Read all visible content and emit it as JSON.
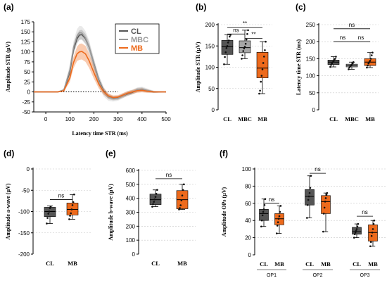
{
  "colors": {
    "CL": "#555555",
    "MBC": "#a6a6a6",
    "MB": "#ed6a1c",
    "MBC_line": "#9a9a9a"
  },
  "chart_data": [
    {
      "panel": "(a)",
      "type": "line",
      "xlabel": "Latency time STR (ms)",
      "ylabel": "Amplitude STR (µV)",
      "xlim": [
        -50,
        500
      ],
      "ylim": [
        -50,
        175
      ],
      "xticks": [
        0,
        100,
        200,
        300,
        400,
        500
      ],
      "yticks": [
        -50,
        -25,
        0,
        25,
        50,
        75,
        100,
        125,
        150,
        175
      ],
      "legend_placement": "top-right",
      "series": [
        {
          "name": "CL",
          "color_key": "CL",
          "x": [
            -50,
            0,
            50,
            75,
            100,
            115,
            130,
            140,
            150,
            165,
            180,
            200,
            220,
            240,
            260,
            280,
            300,
            320,
            340,
            360,
            380,
            400,
            420,
            450,
            500
          ],
          "y": [
            0,
            0,
            0,
            4,
            50,
            105,
            133,
            142,
            143,
            133,
            112,
            70,
            30,
            3,
            -12,
            -16,
            -15,
            -10,
            -5,
            -1,
            5,
            6,
            3,
            0,
            0
          ],
          "sd": [
            0,
            0,
            0,
            3,
            10,
            12,
            12,
            12,
            12,
            12,
            12,
            11,
            10,
            8,
            6,
            5,
            5,
            5,
            5,
            5,
            5,
            5,
            4,
            2,
            1
          ]
        },
        {
          "name": "MBC",
          "color_key": "MBC_line",
          "x": [
            -50,
            0,
            50,
            75,
            100,
            115,
            130,
            140,
            150,
            165,
            180,
            200,
            220,
            240,
            260,
            280,
            300,
            320,
            340,
            360,
            380,
            400,
            420,
            450,
            500
          ],
          "y": [
            0,
            0,
            0,
            5,
            55,
            110,
            140,
            148,
            147,
            135,
            112,
            68,
            28,
            1,
            -13,
            -17,
            -16,
            -10,
            -4,
            0,
            5,
            7,
            4,
            0,
            0
          ],
          "sd": [
            0,
            0,
            0,
            4,
            14,
            16,
            17,
            17,
            17,
            17,
            17,
            16,
            14,
            12,
            9,
            7,
            6,
            6,
            6,
            6,
            6,
            6,
            5,
            3,
            1
          ]
        },
        {
          "name": "MB",
          "color_key": "MB",
          "x": [
            -50,
            0,
            50,
            75,
            100,
            115,
            130,
            140,
            150,
            165,
            180,
            200,
            220,
            240,
            260,
            280,
            300,
            320,
            340,
            360,
            380,
            400,
            420,
            450,
            500
          ],
          "y": [
            0,
            0,
            0,
            3,
            35,
            73,
            95,
            100,
            101,
            95,
            78,
            48,
            20,
            1,
            -10,
            -14,
            -13,
            -8,
            -3,
            0,
            3,
            4,
            2,
            0,
            0
          ],
          "sd": [
            0,
            0,
            0,
            3,
            10,
            14,
            18,
            20,
            20,
            20,
            18,
            15,
            11,
            8,
            6,
            5,
            5,
            5,
            5,
            5,
            5,
            5,
            4,
            2,
            1
          ]
        }
      ]
    },
    {
      "panel": "(b)",
      "type": "box",
      "ylabel": "Amplitude STR (µV)",
      "ylim": [
        0,
        200
      ],
      "yticks": [
        0,
        50,
        100,
        150,
        200
      ],
      "grid": true,
      "categories": [
        "CL",
        "MBC",
        "MB"
      ],
      "boxes": [
        {
          "color_key": "CL",
          "min": 107,
          "q1": 130,
          "median": 148,
          "q3": 163,
          "max": 176,
          "points": [
            107,
            124,
            135,
            145,
            150,
            158,
            163,
            172,
            176
          ]
        },
        {
          "color_key": "MBC",
          "min": 120,
          "q1": 134,
          "median": 146,
          "q3": 162,
          "max": 187,
          "points": [
            120,
            128,
            138,
            144,
            148,
            155,
            165,
            178,
            187
          ]
        },
        {
          "color_key": "MB",
          "min": 38,
          "q1": 75,
          "median": 98,
          "q3": 135,
          "max": 160,
          "points": [
            38,
            45,
            66,
            80,
            95,
            110,
            125,
            140,
            160
          ]
        }
      ],
      "significance": [
        {
          "from": 0,
          "to": 2,
          "label": "**",
          "y": 193
        },
        {
          "from": 0,
          "to": 1,
          "label": "ns",
          "y": 178
        },
        {
          "from": 1,
          "to": 2,
          "label": "**",
          "y": 168
        }
      ]
    },
    {
      "panel": "(c)",
      "type": "box",
      "ylabel": "Latency time STR (ms)",
      "ylim": [
        0,
        250
      ],
      "yticks": [
        0,
        50,
        100,
        150,
        200,
        250
      ],
      "grid": true,
      "categories": [
        "CL",
        "MBC",
        "MB"
      ],
      "boxes": [
        {
          "color_key": "CL",
          "min": 126,
          "q1": 133,
          "median": 140,
          "q3": 146,
          "max": 156,
          "points": [
            126,
            132,
            136,
            140,
            142,
            146,
            150,
            156
          ]
        },
        {
          "color_key": "MBC",
          "min": 119,
          "q1": 126,
          "median": 130,
          "q3": 134,
          "max": 140,
          "points": [
            119,
            124,
            128,
            130,
            132,
            136,
            140
          ]
        },
        {
          "color_key": "MB",
          "min": 124,
          "q1": 130,
          "median": 140,
          "q3": 150,
          "max": 168,
          "points": [
            124,
            130,
            136,
            140,
            144,
            150,
            160,
            168
          ]
        }
      ],
      "significance": [
        {
          "from": 0,
          "to": 2,
          "label": "ns",
          "y": 238
        },
        {
          "from": 0,
          "to": 1,
          "label": "ns",
          "y": 200
        },
        {
          "from": 1,
          "to": 2,
          "label": "ns",
          "y": 200
        }
      ]
    },
    {
      "panel": "(d)",
      "type": "box",
      "ylabel": "Amplitude a-wave (µV)",
      "ylim": [
        -200,
        0
      ],
      "yticks": [
        -200,
        -150,
        -100,
        -50,
        0
      ],
      "grid": true,
      "categories": [
        "CL",
        "MB"
      ],
      "boxes": [
        {
          "color_key": "CL",
          "min": -128,
          "q1": -112,
          "median": -100,
          "q3": -90,
          "max": -87,
          "points": [
            -128,
            -115,
            -105,
            -100,
            -92,
            -88
          ]
        },
        {
          "color_key": "MB",
          "min": -118,
          "q1": -108,
          "median": -95,
          "q3": -80,
          "max": -60,
          "points": [
            -118,
            -110,
            -104,
            -95,
            -85,
            -78,
            -60
          ]
        }
      ],
      "significance": [
        {
          "from": 0,
          "to": 1,
          "label": "ns",
          "y": -72
        }
      ]
    },
    {
      "panel": "(e)",
      "type": "box",
      "ylabel": "Amplitude b-wave (µV)",
      "ylim": [
        0,
        600
      ],
      "yticks": [
        0,
        100,
        200,
        300,
        400,
        500,
        600
      ],
      "grid": true,
      "categories": [
        "CL",
        "MB"
      ],
      "boxes": [
        {
          "color_key": "CL",
          "min": 340,
          "q1": 355,
          "median": 390,
          "q3": 430,
          "max": 460,
          "points": [
            340,
            358,
            375,
            392,
            410,
            432,
            460
          ]
        },
        {
          "color_key": "MB",
          "min": 320,
          "q1": 325,
          "median": 390,
          "q3": 455,
          "max": 500,
          "points": [
            320,
            330,
            350,
            385,
            420,
            460,
            500
          ]
        }
      ],
      "significance": [
        {
          "from": 0,
          "to": 1,
          "label": "ns",
          "y": 540
        }
      ]
    },
    {
      "panel": "(f)",
      "type": "box",
      "ylabel": "Amplitude OPs (µV)",
      "ylim": [
        0,
        100
      ],
      "yticks": [
        0,
        20,
        40,
        60,
        80,
        100
      ],
      "grid": true,
      "categories": [
        "CL",
        "MB",
        "CL",
        "MB",
        "CL",
        "MB"
      ],
      "groups": [
        "OP1",
        "OP2",
        "OP3"
      ],
      "boxes": [
        {
          "color_key": "CL",
          "min": 33,
          "q1": 40,
          "median": 48,
          "q3": 53,
          "max": 65,
          "points": [
            33,
            40,
            46,
            50,
            53,
            58,
            65
          ]
        },
        {
          "color_key": "MB",
          "min": 25,
          "q1": 35,
          "median": 42,
          "q3": 48,
          "max": 57,
          "points": [
            25,
            34,
            38,
            42,
            45,
            50,
            57
          ]
        },
        {
          "color_key": "CL",
          "min": 43,
          "q1": 58,
          "median": 68,
          "q3": 76,
          "max": 92,
          "points": [
            43,
            58,
            64,
            68,
            72,
            78,
            92
          ]
        },
        {
          "color_key": "MB",
          "min": 27,
          "q1": 48,
          "median": 62,
          "q3": 69,
          "max": 72,
          "points": [
            27,
            48,
            55,
            62,
            66,
            70,
            72
          ]
        },
        {
          "color_key": "CL",
          "min": 20,
          "q1": 24,
          "median": 27,
          "q3": 32,
          "max": 36,
          "points": [
            20,
            24,
            26,
            28,
            30,
            33,
            36
          ]
        },
        {
          "color_key": "MB",
          "min": 10,
          "q1": 16,
          "median": 26,
          "q3": 35,
          "max": 40,
          "points": [
            10,
            15,
            22,
            26,
            30,
            36,
            40
          ]
        }
      ],
      "significance": [
        {
          "from": 0,
          "to": 1,
          "label": "ns",
          "y": 60
        },
        {
          "from": 2,
          "to": 3,
          "label": "ns",
          "y": 95
        },
        {
          "from": 4,
          "to": 5,
          "label": "ns",
          "y": 45
        }
      ]
    }
  ]
}
